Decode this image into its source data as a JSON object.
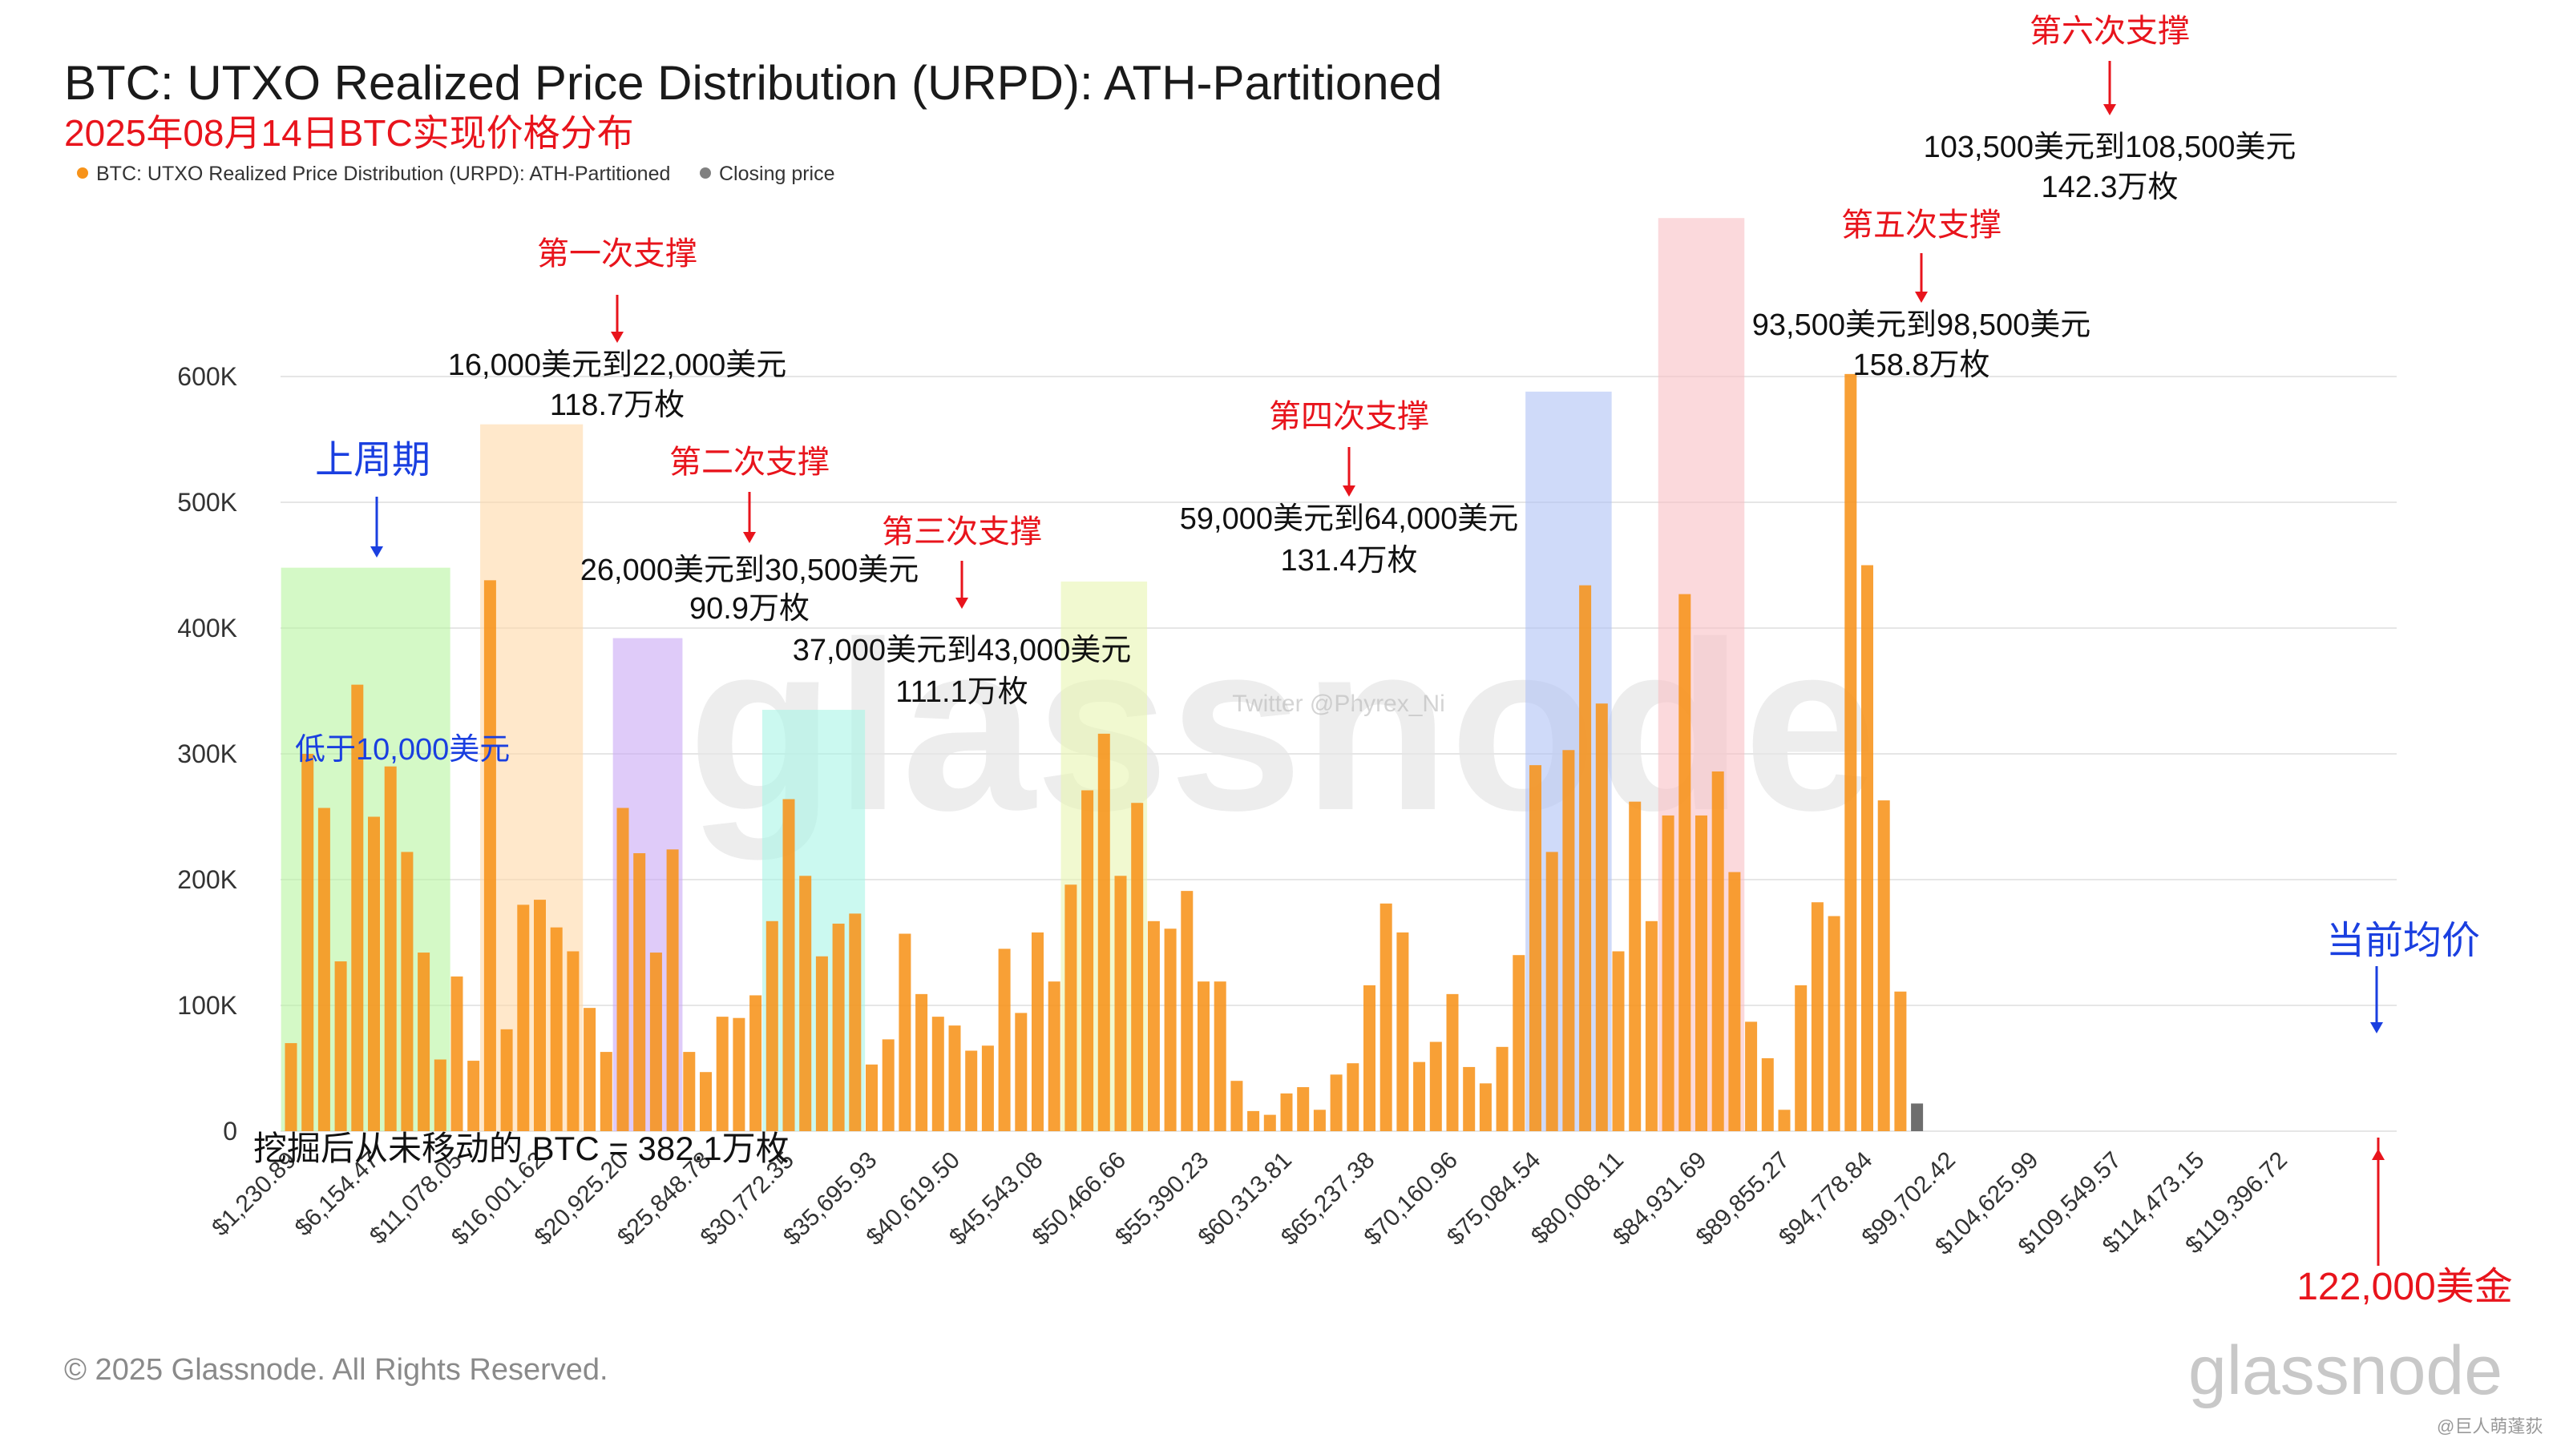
{
  "header": {
    "title": "BTC: UTXO Realized Price Distribution (URPD): ATH-Partitioned",
    "subtitle": "2025年08月14日BTC实现价格分布"
  },
  "legend": {
    "series_label": "BTC: UTXO Realized Price Distribution (URPD): ATH-Partitioned",
    "closing_label": "Closing price"
  },
  "footer": {
    "copyright": "© 2025 Glassnode. All Rights Reserved.",
    "logo_text": "glassnode",
    "watermark_text": "glassnode",
    "twitter_watermark": "Twitter @Phyrex_Ni",
    "weibo_mark": "@巨人萌蓬荻"
  },
  "colors": {
    "bar": "#F7931A",
    "closing_bar": "#6E6E6E",
    "legend_dot": "#F7931A",
    "legend_closing_dot": "#808080",
    "red_annotation": "#E8141C",
    "blue_annotation": "#1A3FE0",
    "grid": "#E6E6E6",
    "prev_cycle_zone": "#B8F5A0",
    "support1_zone": "#FFD9A8",
    "support2_zone": "#C9A8F5",
    "support3_zone": "#A8F5E6",
    "support4_zone": "#E8F5B0",
    "support5_zone": "#AFC2F5",
    "support6_zone": "#F8C0C4"
  },
  "chart_data": {
    "type": "bar",
    "title": "BTC: UTXO Realized Price Distribution (URPD): ATH-Partitioned",
    "subtitle": "2025年08月14日BTC实现价格分布",
    "xlabel": "",
    "ylabel": "",
    "ylim": [
      0,
      600000
    ],
    "yticks": [
      0,
      100000,
      200000,
      300000,
      400000,
      500000,
      600000
    ],
    "ytick_labels": [
      "0",
      "100K",
      "200K",
      "300K",
      "400K",
      "500K",
      "600K"
    ],
    "xtick_labels": [
      "$1,230.89",
      "$6,154.47",
      "$11,078.05",
      "$16,001.62",
      "$20,925.20",
      "$25,848.78",
      "$30,772.35",
      "$35,695.93",
      "$40,619.50",
      "$45,543.08",
      "$50,466.66",
      "$55,390.23",
      "$60,313.81",
      "$65,237.38",
      "$70,160.96",
      "$75,084.54",
      "$80,008.11",
      "$84,931.69",
      "$89,855.27",
      "$94,778.84",
      "$99,702.42",
      "$104,625.99",
      "$109,549.57",
      "$114,473.15",
      "$119,396.72"
    ],
    "grid": true,
    "legend_position": "top-left",
    "series": [
      {
        "name": "BTC: UTXO Realized Price Distribution (URPD): ATH-Partitioned",
        "values": [
          70000,
          300000,
          257000,
          135000,
          355000,
          250000,
          290000,
          222000,
          142000,
          57000,
          123000,
          56000,
          438000,
          81000,
          180000,
          184000,
          162000,
          143000,
          98000,
          63000,
          257000,
          221000,
          142000,
          224000,
          63000,
          47000,
          91000,
          90000,
          108000,
          167000,
          264000,
          203000,
          139000,
          165000,
          173000,
          53000,
          73000,
          157000,
          109000,
          91000,
          84000,
          64000,
          68000,
          145000,
          94000,
          158000,
          119000,
          196000,
          271000,
          316000,
          203000,
          261000,
          167000,
          161000,
          191000,
          119000,
          119000,
          40000,
          16000,
          13000,
          30000,
          35000,
          17000,
          45000,
          54000,
          116000,
          181000,
          158000,
          55000,
          71000,
          109000,
          51000,
          38000,
          67000,
          140000,
          291000,
          222000,
          303000,
          434000,
          340000,
          143000,
          262000,
          167000,
          251000,
          427000,
          251000,
          286000,
          206000,
          87000,
          58000,
          17000,
          116000,
          182000,
          171000,
          602000,
          450000,
          263000,
          111000
        ]
      },
      {
        "name": "Closing price",
        "values": [
          22000
        ]
      }
    ],
    "zones": [
      {
        "id": "prev-cycle",
        "label": "上周期",
        "sub_label": "低于10,000美元",
        "bar_start": 0,
        "bar_end": 9,
        "top": 448000
      },
      {
        "id": "support-1",
        "label": "第一次支撑",
        "range_label": "16,000美元到22,000美元",
        "amount_label": "118.7万枚",
        "bar_start": 12,
        "bar_end": 17,
        "top": 562000
      },
      {
        "id": "support-2",
        "label": "第二次支撑",
        "range_label": "26,000美元到30,500美元",
        "amount_label": "90.9万枚",
        "bar_start": 20,
        "bar_end": 23,
        "top": 392000
      },
      {
        "id": "support-3",
        "label": "第三次支撑",
        "range_label": "37,000美元到43,000美元",
        "amount_label": "111.1万枚",
        "bar_start": 29,
        "bar_end": 34,
        "top": 335000
      },
      {
        "id": "support-4",
        "label": "第四次支撑",
        "range_label": "59,000美元到64,000美元",
        "amount_label": "131.4万枚",
        "bar_start": 47,
        "bar_end": 51,
        "top": 437000
      },
      {
        "id": "support-5",
        "label": "第五次支撑",
        "range_label": "93,500美元到98,500美元",
        "amount_label": "158.8万枚",
        "bar_start": 75,
        "bar_end": 79,
        "top": 588000
      },
      {
        "id": "support-6",
        "label": "第六次支撑",
        "range_label": "103,500美元到108,500美元",
        "amount_label": "142.3万枚",
        "bar_start": 83,
        "bar_end": 87,
        "top": 726000
      }
    ],
    "annotations": {
      "never_moved": "挖掘后从未移动的 BTC = 382.1万枚",
      "current_avg": "当前均价",
      "current_price": "122,000美金"
    }
  }
}
